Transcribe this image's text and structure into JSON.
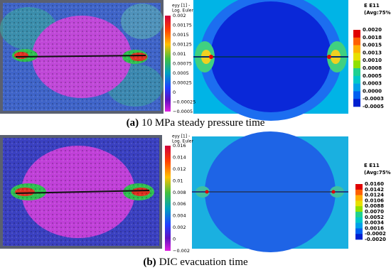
{
  "panels": [
    {
      "caption": {
        "label": "(a)",
        "text": "10 MPa steady pressure time"
      },
      "dic_colorbar": {
        "title": [
          "eyy [1] -",
          "Log. Euler"
        ],
        "ticks": [
          "0.002",
          "0.00175",
          "0.0015",
          "0.00125",
          "0.001",
          "0.00075",
          "0.0005",
          "0.00025",
          "0",
          "−0.00025",
          "−0.0005"
        ]
      },
      "fea_colorbar": {
        "title": [
          "E E11",
          "(Avg:75%)"
        ],
        "ticks": [
          "0.0020",
          "0.0018",
          "0.0015",
          "0.0013",
          "0.0010",
          "0.0008",
          "0.0005",
          "0.0003",
          "0.0000",
          "-0.0003",
          "-0.0005"
        ]
      }
    },
    {
      "caption": {
        "label": "(b)",
        "text": "DIC evacuation time"
      },
      "dic_colorbar": {
        "title": [
          "eyy [1] -",
          "Log. Euler"
        ],
        "ticks": [
          "0.016",
          "0.014",
          "0.012",
          "0.01",
          "0.008",
          "0.006",
          "0.004",
          "0.002",
          "0",
          "−0.002"
        ]
      },
      "fea_colorbar": {
        "title": [
          "E E11",
          "(Avg:75%)"
        ],
        "ticks": [
          "0.0160",
          "0.0142",
          "0.0124",
          "0.0106",
          "0.0088",
          "0.0070",
          "0.0052",
          "0.0034",
          "0.0016",
          "-0.0002",
          "-0.0020"
        ]
      }
    }
  ]
}
